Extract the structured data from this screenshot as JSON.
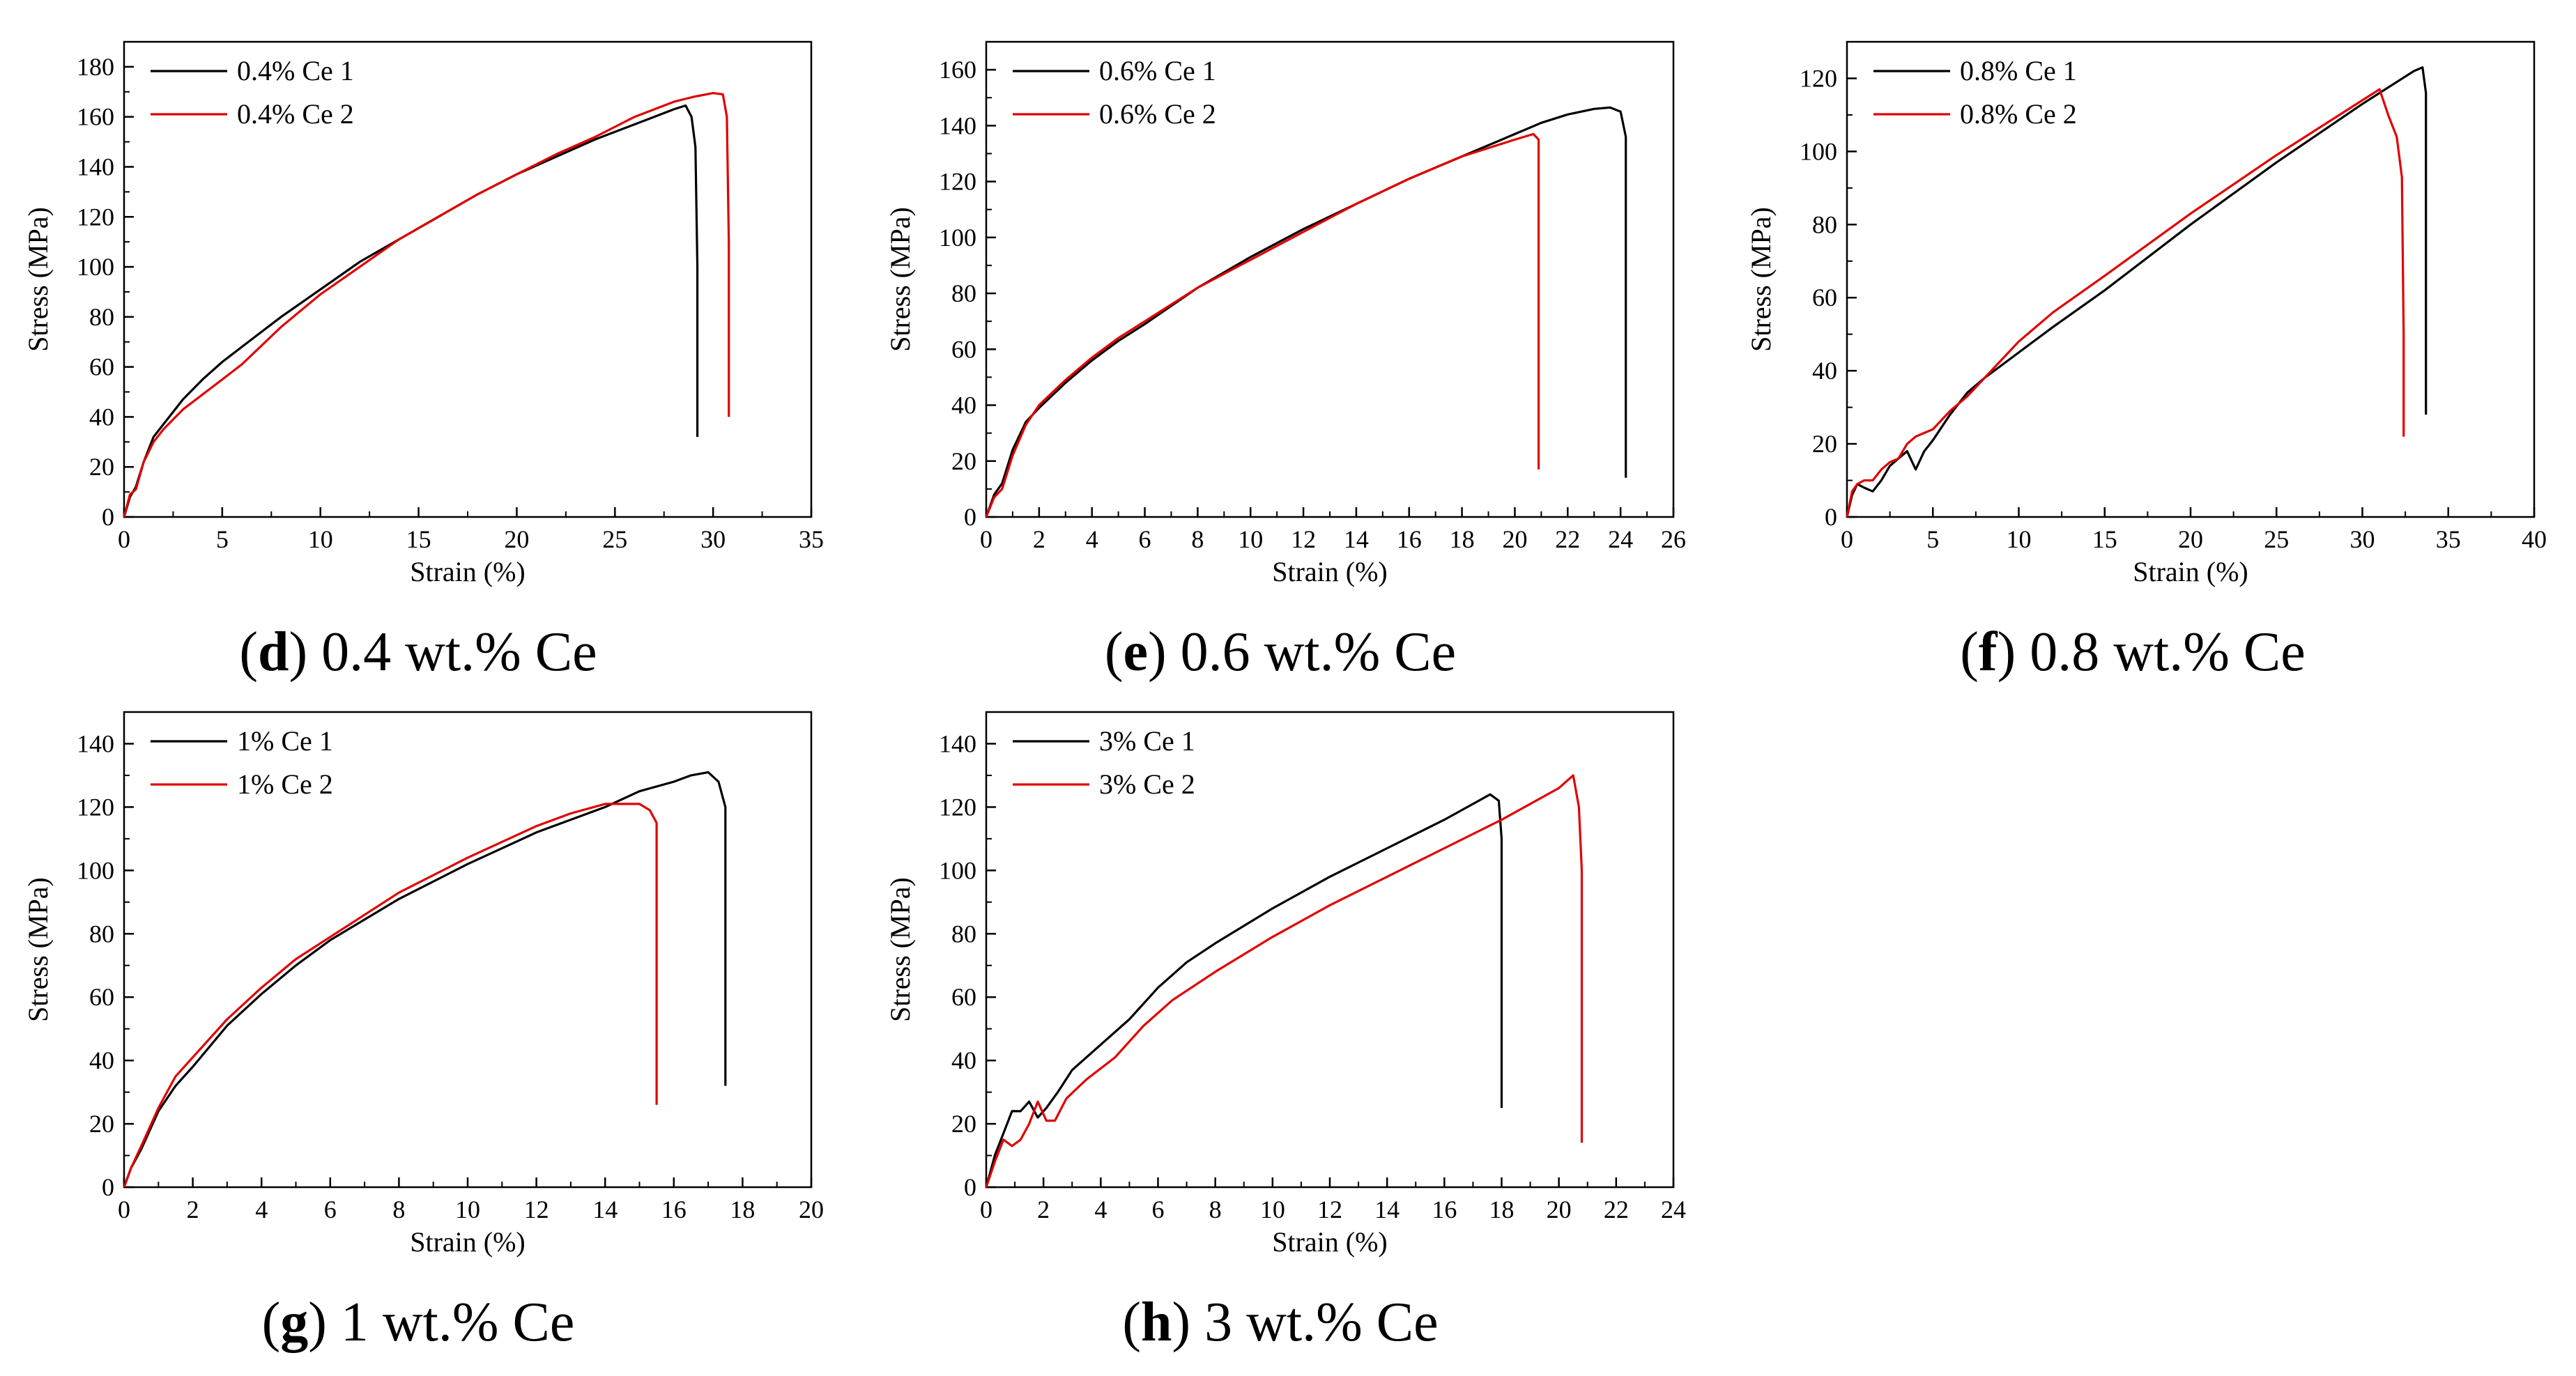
{
  "figure": {
    "panels": [
      "d",
      "e",
      "f",
      "g",
      "h"
    ]
  },
  "colors": {
    "series1": "#000000",
    "series2": "#e00000",
    "axis": "#000000",
    "background": "#ffffff"
  },
  "chart_data": [
    {
      "id": "d",
      "type": "line",
      "caption_letter": "d",
      "caption_text": " 0.4 wt.% Ce",
      "xlabel": "Strain (%)",
      "ylabel": "Stress (MPa)",
      "xlim": [
        0,
        35
      ],
      "ylim": [
        0,
        190
      ],
      "xticks": [
        0,
        5,
        10,
        15,
        20,
        25,
        30,
        35
      ],
      "yticks": [
        0,
        20,
        40,
        60,
        80,
        100,
        120,
        140,
        160,
        180
      ],
      "legend_position": "top-left",
      "grid": false,
      "series": [
        {
          "name": "0.4% Ce 1",
          "color": "#000000",
          "x": [
            0,
            0.3,
            0.6,
            1.0,
            1.5,
            2,
            3,
            4,
            5,
            6,
            8,
            10,
            12,
            14,
            16,
            18,
            20,
            22,
            24,
            26,
            27,
            28,
            28.6,
            28.9,
            29.1,
            29.2,
            29.2
          ],
          "y": [
            0,
            8,
            12,
            22,
            32,
            37,
            47,
            55,
            62,
            68,
            80,
            91,
            102,
            111,
            120,
            129,
            137,
            144,
            151,
            157,
            160,
            163,
            164.5,
            160,
            148,
            100,
            32
          ]
        },
        {
          "name": "0.4% Ce 2",
          "color": "#e00000",
          "x": [
            0,
            0.3,
            0.6,
            1.0,
            1.5,
            2,
            3,
            4,
            5,
            6,
            8,
            10,
            12,
            14,
            16,
            18,
            20,
            22,
            24,
            26,
            28,
            29,
            30,
            30.5,
            30.7,
            30.8,
            30.8
          ],
          "y": [
            0,
            9,
            11,
            22,
            30,
            35,
            43,
            49,
            55,
            61,
            76,
            89,
            100,
            111,
            120,
            129,
            137,
            145,
            152,
            160,
            166,
            168,
            169.5,
            169,
            160,
            110,
            40
          ]
        }
      ]
    },
    {
      "id": "e",
      "type": "line",
      "caption_letter": "e",
      "caption_text": " 0.6 wt.% Ce",
      "xlabel": "Strain (%)",
      "ylabel": "Stress (MPa)",
      "xlim": [
        0,
        26
      ],
      "ylim": [
        0,
        170
      ],
      "xticks": [
        0,
        2,
        4,
        6,
        8,
        10,
        12,
        14,
        16,
        18,
        20,
        22,
        24,
        26
      ],
      "yticks": [
        0,
        20,
        40,
        60,
        80,
        100,
        120,
        140,
        160
      ],
      "legend_position": "top-left",
      "grid": false,
      "series": [
        {
          "name": "0.6% Ce 1",
          "color": "#000000",
          "x": [
            0,
            0.3,
            0.6,
            1.0,
            1.5,
            2,
            3,
            4,
            5,
            6,
            8,
            10,
            12,
            14,
            16,
            18,
            20,
            21,
            22,
            23,
            23.6,
            24.0,
            24.2,
            24.2
          ],
          "y": [
            0,
            8,
            12,
            24,
            34,
            39,
            48,
            56,
            63,
            69,
            82,
            93,
            103,
            112,
            121,
            129,
            137,
            141,
            144,
            146,
            146.5,
            145,
            136,
            14
          ]
        },
        {
          "name": "0.6% Ce 2",
          "color": "#e00000",
          "x": [
            0,
            0.3,
            0.6,
            1.0,
            1.5,
            2,
            3,
            4,
            5,
            6,
            8,
            10,
            12,
            14,
            16,
            18,
            20,
            20.7,
            20.9,
            20.9
          ],
          "y": [
            0,
            7,
            10,
            22,
            33,
            40,
            49,
            57,
            64,
            70,
            82,
            92,
            102,
            112,
            121,
            129,
            135,
            137,
            135,
            17
          ]
        }
      ]
    },
    {
      "id": "f",
      "type": "line",
      "caption_letter": "f",
      "caption_text": " 0.8 wt.% Ce",
      "xlabel": "Strain (%)",
      "ylabel": "Stress (MPa)",
      "xlim": [
        0,
        40
      ],
      "ylim": [
        0,
        130
      ],
      "xticks": [
        0,
        5,
        10,
        15,
        20,
        25,
        30,
        35,
        40
      ],
      "yticks": [
        0,
        20,
        40,
        60,
        80,
        100,
        120
      ],
      "legend_position": "top-left",
      "grid": false,
      "series": [
        {
          "name": "0.8% Ce 1",
          "color": "#000000",
          "x": [
            0,
            0.3,
            0.6,
            1.0,
            1.5,
            2.0,
            2.5,
            3.0,
            3.5,
            4.0,
            4.5,
            5.0,
            6,
            7,
            8,
            10,
            12,
            15,
            20,
            25,
            30,
            32,
            33,
            33.5,
            33.7,
            33.7
          ],
          "y": [
            0,
            6,
            9,
            8,
            7,
            10,
            14,
            16,
            18,
            13,
            18,
            21,
            28,
            34,
            38,
            45,
            52,
            62,
            80,
            97,
            113,
            119,
            122,
            123,
            116,
            28
          ]
        },
        {
          "name": "0.8% Ce 2",
          "color": "#e00000",
          "x": [
            0,
            0.3,
            0.6,
            1.0,
            1.5,
            2.0,
            2.5,
            3.0,
            3.5,
            4.0,
            5.0,
            6,
            7,
            8,
            10,
            12,
            15,
            20,
            25,
            28,
            30,
            31,
            31.5,
            32,
            32.3,
            32.4,
            32.4
          ],
          "y": [
            0,
            7,
            9,
            10,
            10,
            13,
            15,
            16,
            20,
            22,
            24,
            29,
            33,
            38,
            48,
            56,
            66,
            83,
            99,
            108,
            114,
            117,
            110,
            104,
            93,
            50,
            22
          ]
        }
      ]
    },
    {
      "id": "g",
      "type": "line",
      "caption_letter": "g",
      "caption_text": " 1 wt.% Ce",
      "xlabel": "Strain (%)",
      "ylabel": "Stress (MPa)",
      "xlim": [
        0,
        20
      ],
      "ylim": [
        0,
        150
      ],
      "xticks": [
        0,
        2,
        4,
        6,
        8,
        10,
        12,
        14,
        16,
        18,
        20
      ],
      "yticks": [
        0,
        20,
        40,
        60,
        80,
        100,
        120,
        140
      ],
      "legend_position": "top-left",
      "grid": false,
      "series": [
        {
          "name": "1% Ce 1",
          "color": "#000000",
          "x": [
            0,
            0.2,
            0.5,
            1.0,
            1.5,
            2,
            3,
            4,
            5,
            6,
            8,
            10,
            12,
            14,
            15,
            16,
            16.5,
            17.0,
            17.3,
            17.5,
            17.5
          ],
          "y": [
            0,
            6,
            12,
            24,
            32,
            38,
            51,
            61,
            70,
            78,
            91,
            102,
            112,
            120,
            125,
            128,
            130,
            131,
            128,
            120,
            32
          ]
        },
        {
          "name": "1% Ce 2",
          "color": "#e00000",
          "x": [
            0,
            0.2,
            0.5,
            1.0,
            1.5,
            2,
            3,
            4,
            5,
            6,
            8,
            10,
            12,
            13,
            14,
            14.5,
            15,
            15.3,
            15.5,
            15.5
          ],
          "y": [
            0,
            6,
            13,
            25,
            35,
            41,
            53,
            63,
            72,
            79,
            93,
            104,
            114,
            118,
            121,
            121,
            121,
            119,
            115,
            26
          ]
        }
      ]
    },
    {
      "id": "h",
      "type": "line",
      "caption_letter": "h",
      "caption_text": " 3 wt.% Ce",
      "xlabel": "Strain (%)",
      "ylabel": "Stress (MPa)",
      "xlim": [
        0,
        24
      ],
      "ylim": [
        0,
        150
      ],
      "xticks": [
        0,
        2,
        4,
        6,
        8,
        10,
        12,
        14,
        16,
        18,
        20,
        22,
        24
      ],
      "yticks": [
        0,
        20,
        40,
        60,
        80,
        100,
        120,
        140
      ],
      "legend_position": "top-left",
      "grid": false,
      "series": [
        {
          "name": "3% Ce 1",
          "color": "#000000",
          "x": [
            0,
            0.3,
            0.6,
            0.9,
            1.2,
            1.5,
            1.8,
            2.1,
            2.5,
            3,
            4,
            5,
            6,
            7,
            8,
            10,
            12,
            14,
            16,
            17,
            17.6,
            17.9,
            18.0,
            18.0
          ],
          "y": [
            0,
            10,
            17,
            24,
            24,
            27,
            22,
            25,
            30,
            37,
            45,
            53,
            63,
            71,
            77,
            88,
            98,
            107,
            116,
            121,
            124,
            122,
            110,
            25
          ]
        },
        {
          "name": "3% Ce 2",
          "color": "#e00000",
          "x": [
            0,
            0.3,
            0.6,
            0.9,
            1.2,
            1.5,
            1.8,
            2.1,
            2.4,
            2.8,
            3.5,
            4.5,
            5.5,
            6.5,
            8,
            10,
            12,
            14,
            16,
            18,
            19,
            20,
            20.5,
            20.7,
            20.8,
            20.8
          ],
          "y": [
            0,
            8,
            15,
            13,
            15,
            20,
            27,
            21,
            21,
            28,
            34,
            41,
            51,
            59,
            68,
            79,
            89,
            98,
            107,
            116,
            121,
            126,
            130,
            120,
            100,
            14
          ]
        }
      ]
    }
  ]
}
